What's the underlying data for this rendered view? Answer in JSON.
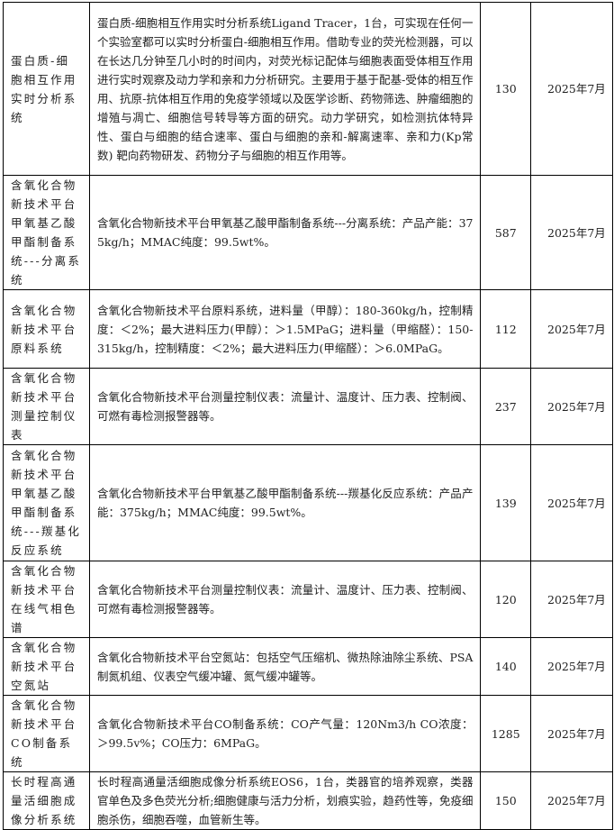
{
  "rows": [
    {
      "name": "蛋白质-细胞相互作用实时分析系统",
      "desc": "蛋白质-细胞相互作用实时分析系统Ligand Tracer，1台，可实现在任何一个实验室都可以实时分析蛋白-细胞相互作用。借助专业的荧光检测器，可以在长达几分钟至几小时的时间内，对荧光标记配体与细胞表面受体相互作用进行实时观察及动力学和亲和力分析研究。主要用于基于配基-受体的相互作用、抗原-抗体相互作用的免疫学领域以及医学诊断、药物筛选、肿瘤细胞的增殖与凋亡、细胞信号转导等方面的研究。动力学研究，如检测抗体特异性、蛋白与细胞的结合速率、蛋白与细胞的亲和-解离速率、亲和力(Kp常数) 靶向药物研发、药物分子与细胞的相互作用等。",
      "value": "130",
      "date": "2025年7月"
    },
    {
      "name": "含氧化合物新技术平台甲氧基乙酸甲酯制备系统---分离系统",
      "desc": "含氧化合物新技术平台甲氧基乙酸甲酯制备系统---分离系统：产品产能：375kg/h；MMAC纯度：99.5wt%。",
      "value": "587",
      "date": "2025年7月"
    },
    {
      "name": "含氧化合物新技术平台原料系统",
      "desc": "含氧化合物新技术平台原料系统，进料量（甲醇）：180-360kg/h，控制精度：＜2%；最大进料压力(甲醇）：＞1.5MPaG；进料量（甲缩醛）：150-315kg/h，控制精度：＜2%；最大进料压力(甲缩醛）：＞6.0MPaG。",
      "value": "112",
      "date": "2025年7月"
    },
    {
      "name": "含氧化合物新技术平台测量控制仪表",
      "desc": "含氧化合物新技术平台测量控制仪表：流量计、温度计、压力表、控制阀、可燃有毒检测报警器等。",
      "value": "237",
      "date": "2025年7月"
    },
    {
      "name": "含氧化合物新技术平台甲氧基乙酸甲酯制备系统---羰基化反应系统",
      "desc": "含氧化合物新技术平台甲氧基乙酸甲酯制备系统---羰基化反应系统：产品产能：375kg/h；MMAC纯度：99.5wt%。",
      "value": "139",
      "date": "2025年7月"
    },
    {
      "name": "含氧化合物新技术平台在线气相色谱",
      "desc": "含氧化合物新技术平台测量控制仪表：流量计、温度计、压力表、控制阀、可燃有毒检测报警器等。",
      "value": "120",
      "date": "2025年7月"
    },
    {
      "name": "含氧化合物新技术平台空氮站",
      "desc": "含氧化合物新技术平台空氮站：包括空气压缩机、微热除油除尘系统、PSA制氮机组、仪表空气缓冲罐、氮气缓冲罐等。",
      "value": "140",
      "date": "2025年7月"
    },
    {
      "name": "含氧化合物新技术平台CO制备系统",
      "desc": "含氧化合物新技术平台CO制备系统：CO产气量：120Nm3/h CO浓度：＞99.5v%；CO压力：6MPaG。",
      "value": "1285",
      "date": "2025年7月"
    },
    {
      "name": "长时程高通量活细胞成像分析系统",
      "desc": "长时程高通量活细胞成像分析系统EOS6，1台，类器官的培养观察，类器官单色及多色荧光分析;细胞健康与活力分析，划痕实验，趋药性等，免疫细胞杀伤，细胞吞噬，血管新生等。",
      "value": "150",
      "date": "2025年7月"
    }
  ]
}
